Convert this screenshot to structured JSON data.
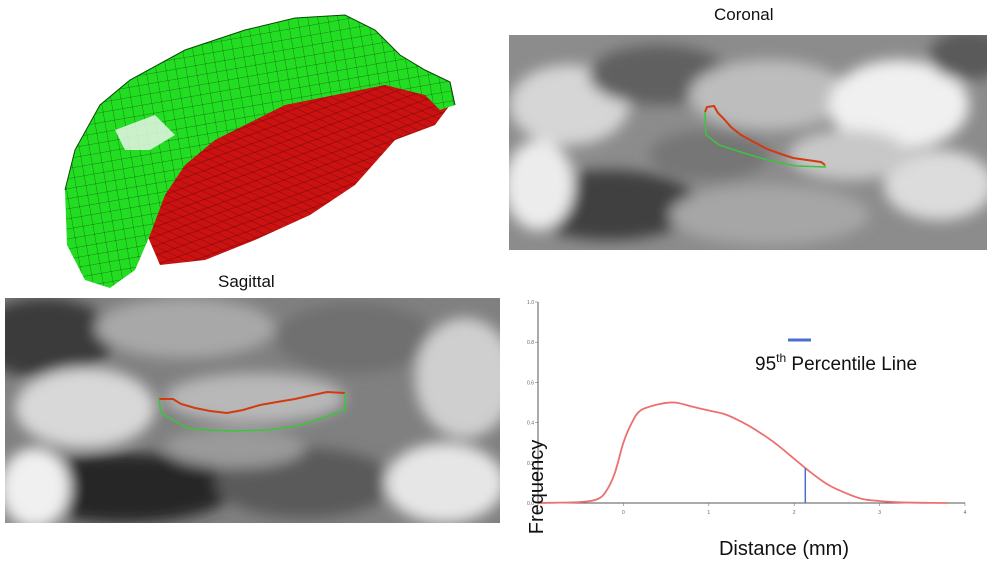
{
  "figure": {
    "coronal_label": "Coronal",
    "sagittal_label": "Sagittal"
  },
  "colors": {
    "mesh_green": "#22dd22",
    "mesh_red": "#cc1111",
    "contour_red": "#d23a10",
    "contour_green": "#3cc43c",
    "curve": "#ee6f6f",
    "percentile_line": "#4a6fd0"
  },
  "chart_data": {
    "type": "line",
    "xlabel": "Distance (mm)",
    "ylabel": "Frequency",
    "xlim": [
      -1,
      4
    ],
    "ylim": [
      0,
      1.0
    ],
    "x_ticks": [
      "-1",
      "0",
      "1",
      "2",
      "3",
      "4"
    ],
    "y_ticks": [
      "0.0",
      "0.2",
      "0.4",
      "0.6",
      "0.8",
      "1.0"
    ],
    "series": [
      {
        "x": [
          -1.0,
          -0.5,
          -0.3,
          -0.2,
          -0.1,
          0.0,
          0.1,
          0.2,
          0.4,
          0.6,
          0.8,
          1.0,
          1.2,
          1.4,
          1.6,
          1.8,
          2.0,
          2.2,
          2.4,
          2.6,
          2.8,
          3.0,
          3.2,
          3.5,
          3.8
        ],
        "y": [
          0.0,
          0.005,
          0.02,
          0.06,
          0.15,
          0.3,
          0.4,
          0.46,
          0.49,
          0.5,
          0.48,
          0.46,
          0.44,
          0.4,
          0.35,
          0.29,
          0.22,
          0.15,
          0.09,
          0.05,
          0.02,
          0.01,
          0.004,
          0.001,
          0.0
        ]
      }
    ],
    "annotation": {
      "label_prefix": "95",
      "label_sup": "th",
      "label_suffix": " Percentile Line",
      "x": 2.13
    }
  }
}
